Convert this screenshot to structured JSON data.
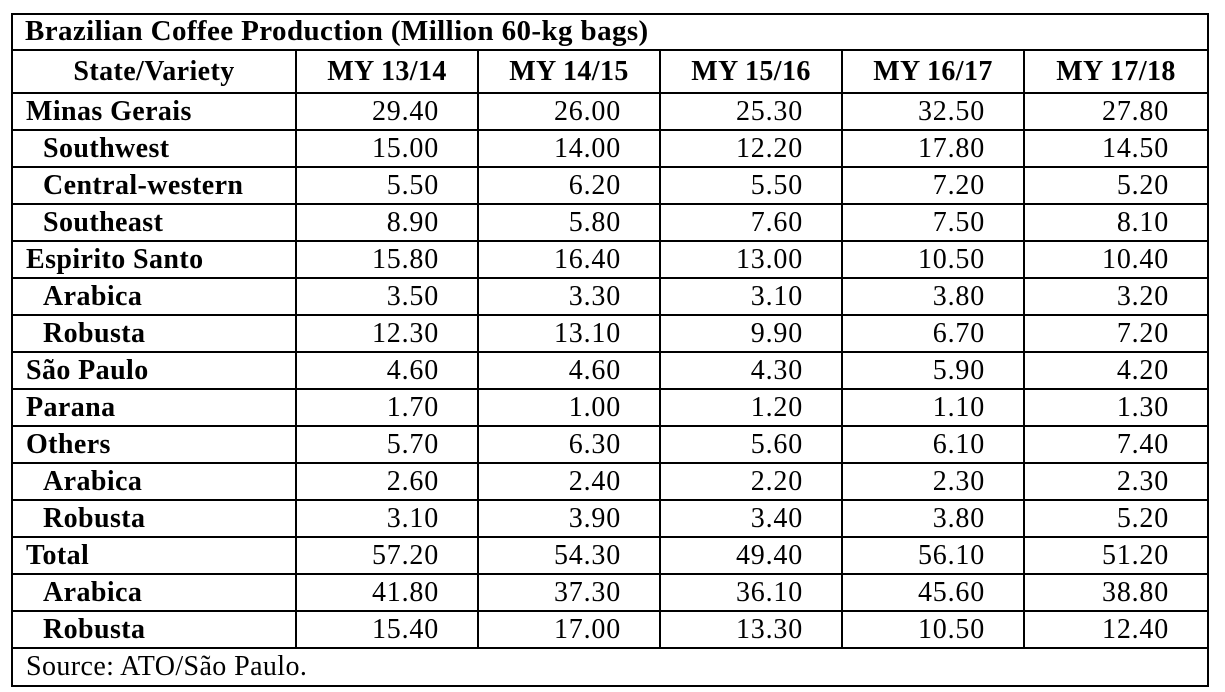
{
  "table": {
    "title": "Brazilian Coffee Production (Million 60-kg bags)",
    "columns": [
      "State/Variety",
      "MY 13/14",
      "MY 14/15",
      "MY 15/16",
      "MY 16/17",
      "MY 17/18"
    ],
    "rows": [
      {
        "label": "Minas Gerais",
        "indent": false,
        "values": [
          "29.40",
          "26.00",
          "25.30",
          "32.50",
          "27.80"
        ]
      },
      {
        "label": "Southwest",
        "indent": true,
        "values": [
          "15.00",
          "14.00",
          "12.20",
          "17.80",
          "14.50"
        ]
      },
      {
        "label": "Central-western",
        "indent": true,
        "values": [
          "5.50",
          "6.20",
          "5.50",
          "7.20",
          "5.20"
        ]
      },
      {
        "label": "Southeast",
        "indent": true,
        "values": [
          "8.90",
          "5.80",
          "7.60",
          "7.50",
          "8.10"
        ]
      },
      {
        "label": "Espirito Santo",
        "indent": false,
        "values": [
          "15.80",
          "16.40",
          "13.00",
          "10.50",
          "10.40"
        ]
      },
      {
        "label": "Arabica",
        "indent": true,
        "values": [
          "3.50",
          "3.30",
          "3.10",
          "3.80",
          "3.20"
        ]
      },
      {
        "label": "Robusta",
        "indent": true,
        "values": [
          "12.30",
          "13.10",
          "9.90",
          "6.70",
          "7.20"
        ]
      },
      {
        "label": "São Paulo",
        "indent": false,
        "values": [
          "4.60",
          "4.60",
          "4.30",
          "5.90",
          "4.20"
        ]
      },
      {
        "label": "Parana",
        "indent": false,
        "values": [
          "1.70",
          "1.00",
          "1.20",
          "1.10",
          "1.30"
        ]
      },
      {
        "label": "Others",
        "indent": false,
        "values": [
          "5.70",
          "6.30",
          "5.60",
          "6.10",
          "7.40"
        ]
      },
      {
        "label": "Arabica",
        "indent": true,
        "values": [
          "2.60",
          "2.40",
          "2.20",
          "2.30",
          "2.30"
        ]
      },
      {
        "label": "Robusta",
        "indent": true,
        "values": [
          "3.10",
          "3.90",
          "3.40",
          "3.80",
          "5.20"
        ]
      },
      {
        "label": "Total",
        "indent": false,
        "values": [
          "57.20",
          "54.30",
          "49.40",
          "56.10",
          "51.20"
        ]
      },
      {
        "label": "Arabica",
        "indent": true,
        "values": [
          "41.80",
          "37.30",
          "36.10",
          "45.60",
          "38.80"
        ]
      },
      {
        "label": "Robusta",
        "indent": true,
        "values": [
          "15.40",
          "17.00",
          "13.30",
          "10.50",
          "12.40"
        ]
      }
    ],
    "source": "Source: ATO/São Paulo.",
    "colors": {
      "border": "#000000",
      "text": "#000000",
      "background": "#ffffff"
    }
  }
}
